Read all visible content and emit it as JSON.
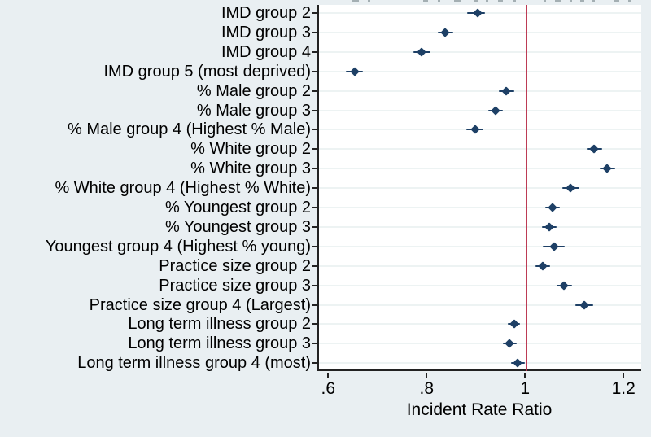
{
  "figure": {
    "xlabel": "Incident Rate Ratio",
    "note": "Stata-style forest / dot plot of incident rate ratios with 95% CI whiskers and red reference line at 1. Plot title cropped off at top edge of screenshot."
  },
  "chart_data": {
    "type": "scatter",
    "subtype": "forest-plot",
    "title": "",
    "xlabel": "Incident Rate Ratio",
    "ylabel": "",
    "xlim": [
      0.578,
      1.236
    ],
    "x_ticks": [
      0.6,
      0.8,
      1.0,
      1.2
    ],
    "x_tick_labels": [
      ".6",
      ".8",
      "1",
      "1.2"
    ],
    "ref_line_x": 1.0,
    "grid": "horizontal",
    "legend": "none",
    "categories": [
      "IMD group 2",
      "IMD group 3",
      "IMD group 4",
      "IMD group 5 (most deprived)",
      "% Male group 2",
      "% Male group 3",
      "% Male group 4 (Highest % Male)",
      "% White group 2",
      "% White group 3",
      "% White group 4 (Highest % White)",
      "% Youngest group 2",
      "% Youngest group 3",
      "Youngest group 4 (Highest % young)",
      "Practice size group 2",
      "Practice size group 3",
      "Practice size group 4 (Largest)",
      "Long term illness group 2",
      "Long term illness group 3",
      "Long term illness group 4 (most)"
    ],
    "series": [
      {
        "name": "Incident Rate Ratio",
        "values": [
          0.9,
          0.835,
          0.787,
          0.65,
          0.958,
          0.937,
          0.895,
          1.137,
          1.163,
          1.089,
          1.053,
          1.046,
          1.055,
          1.033,
          1.076,
          1.117,
          0.974,
          0.965,
          0.982
        ],
        "ci_low": [
          0.879,
          0.82,
          0.77,
          0.633,
          0.943,
          0.922,
          0.878,
          1.122,
          1.148,
          1.072,
          1.038,
          1.031,
          1.032,
          1.018,
          1.06,
          1.099,
          0.961,
          0.951,
          0.968
        ],
        "ci_high": [
          0.915,
          0.85,
          0.804,
          0.668,
          0.975,
          0.952,
          0.912,
          1.153,
          1.179,
          1.107,
          1.068,
          1.061,
          1.078,
          1.048,
          1.092,
          1.135,
          0.987,
          0.979,
          0.997
        ]
      }
    ],
    "colors": {
      "marker": "#1e4066",
      "ci": "#1e4066",
      "ref_line": "#bd3b55",
      "outer_background": "#e9eff2",
      "plot_background": "#ffffff",
      "gridline": "#edf3f3",
      "axis": "#222222",
      "text": "#000000"
    }
  }
}
